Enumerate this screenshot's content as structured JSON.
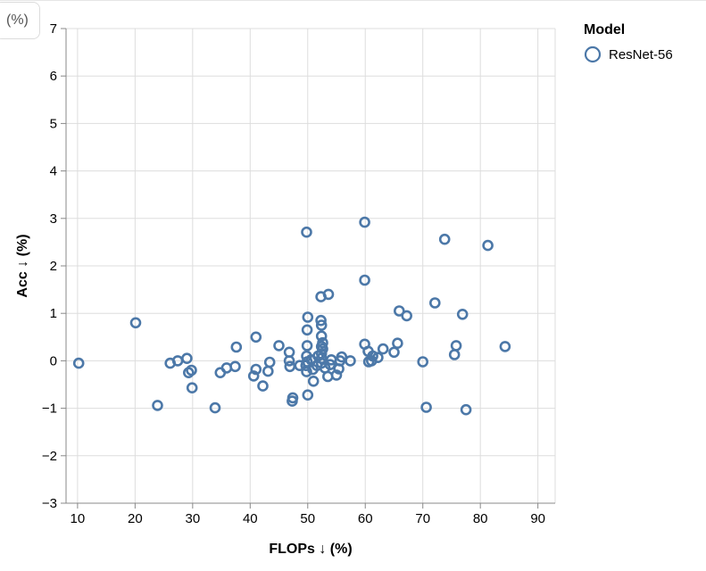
{
  "tooltip": {
    "text": "(%)"
  },
  "chart_data": {
    "type": "scatter",
    "xlabel": "FLOPs ↓ (%)",
    "ylabel": "Acc ↓ (%)",
    "xlim": [
      8,
      93
    ],
    "ylim": [
      -3,
      7
    ],
    "x_ticks": [
      10,
      20,
      30,
      40,
      50,
      60,
      70,
      80,
      90
    ],
    "y_ticks": [
      -3,
      -2,
      -1,
      0,
      1,
      2,
      3,
      4,
      5,
      6,
      7
    ],
    "x_tick_labels": [
      "10",
      "20",
      "30",
      "40",
      "50",
      "60",
      "70",
      "80",
      "90"
    ],
    "y_tick_labels": [
      "−3",
      "−2",
      "−1",
      "0",
      "1",
      "2",
      "3",
      "4",
      "5",
      "6",
      "7"
    ],
    "grid": true,
    "legend": {
      "title": "Model",
      "placement": "top-right"
    },
    "series": [
      {
        "name": "ResNet-56",
        "color": "#4c78a8",
        "marker": "open-circle",
        "points": [
          [
            10.2,
            -0.05
          ],
          [
            20.1,
            0.8
          ],
          [
            23.9,
            -0.94
          ],
          [
            26.1,
            -0.05
          ],
          [
            27.4,
            0.0
          ],
          [
            29.0,
            0.05
          ],
          [
            29.3,
            -0.25
          ],
          [
            29.8,
            -0.2
          ],
          [
            29.9,
            -0.57
          ],
          [
            33.9,
            -0.99
          ],
          [
            34.8,
            -0.25
          ],
          [
            35.9,
            -0.15
          ],
          [
            37.4,
            -0.12
          ],
          [
            37.6,
            0.29
          ],
          [
            40.6,
            -0.32
          ],
          [
            41.0,
            -0.18
          ],
          [
            41.0,
            0.5
          ],
          [
            42.2,
            -0.53
          ],
          [
            43.1,
            -0.22
          ],
          [
            43.4,
            -0.03
          ],
          [
            45.0,
            0.32
          ],
          [
            46.8,
            0.18
          ],
          [
            46.9,
            -0.12
          ],
          [
            46.8,
            0.0
          ],
          [
            47.3,
            -0.85
          ],
          [
            47.4,
            -0.78
          ],
          [
            48.6,
            -0.1
          ],
          [
            49.8,
            2.71
          ],
          [
            50.0,
            0.92
          ],
          [
            49.9,
            0.65
          ],
          [
            49.9,
            0.32
          ],
          [
            49.8,
            0.1
          ],
          [
            49.9,
            -0.02
          ],
          [
            49.7,
            -0.1
          ],
          [
            49.8,
            -0.23
          ],
          [
            50.0,
            -0.72
          ],
          [
            50.6,
            0.02
          ],
          [
            50.9,
            -0.18
          ],
          [
            51.0,
            -0.43
          ],
          [
            51.6,
            -0.1
          ],
          [
            51.8,
            0.1
          ],
          [
            52.3,
            1.35
          ],
          [
            52.3,
            0.85
          ],
          [
            52.4,
            0.75
          ],
          [
            52.4,
            0.52
          ],
          [
            52.6,
            0.38
          ],
          [
            52.4,
            0.3
          ],
          [
            52.6,
            0.25
          ],
          [
            52.4,
            0.15
          ],
          [
            52.4,
            0.05
          ],
          [
            52.4,
            -0.05
          ],
          [
            53.0,
            -0.15
          ],
          [
            53.6,
            1.4
          ],
          [
            53.5,
            -0.33
          ],
          [
            53.9,
            -0.08
          ],
          [
            54.1,
            0.02
          ],
          [
            55.0,
            -0.3
          ],
          [
            55.4,
            -0.17
          ],
          [
            55.6,
            0.0
          ],
          [
            55.9,
            0.08
          ],
          [
            57.4,
            0.0
          ],
          [
            59.9,
            2.92
          ],
          [
            59.9,
            1.7
          ],
          [
            59.9,
            0.35
          ],
          [
            60.5,
            0.2
          ],
          [
            60.6,
            -0.02
          ],
          [
            61.1,
            0.0
          ],
          [
            61.3,
            0.1
          ],
          [
            62.2,
            0.07
          ],
          [
            63.1,
            0.25
          ],
          [
            65.0,
            0.18
          ],
          [
            65.6,
            0.37
          ],
          [
            65.9,
            1.05
          ],
          [
            67.2,
            0.95
          ],
          [
            70.0,
            -0.02
          ],
          [
            70.6,
            -0.98
          ],
          [
            72.1,
            1.22
          ],
          [
            73.8,
            2.56
          ],
          [
            75.5,
            0.13
          ],
          [
            75.8,
            0.32
          ],
          [
            76.9,
            0.98
          ],
          [
            77.5,
            -1.03
          ],
          [
            81.3,
            2.43
          ],
          [
            84.3,
            0.3
          ]
        ]
      }
    ]
  }
}
